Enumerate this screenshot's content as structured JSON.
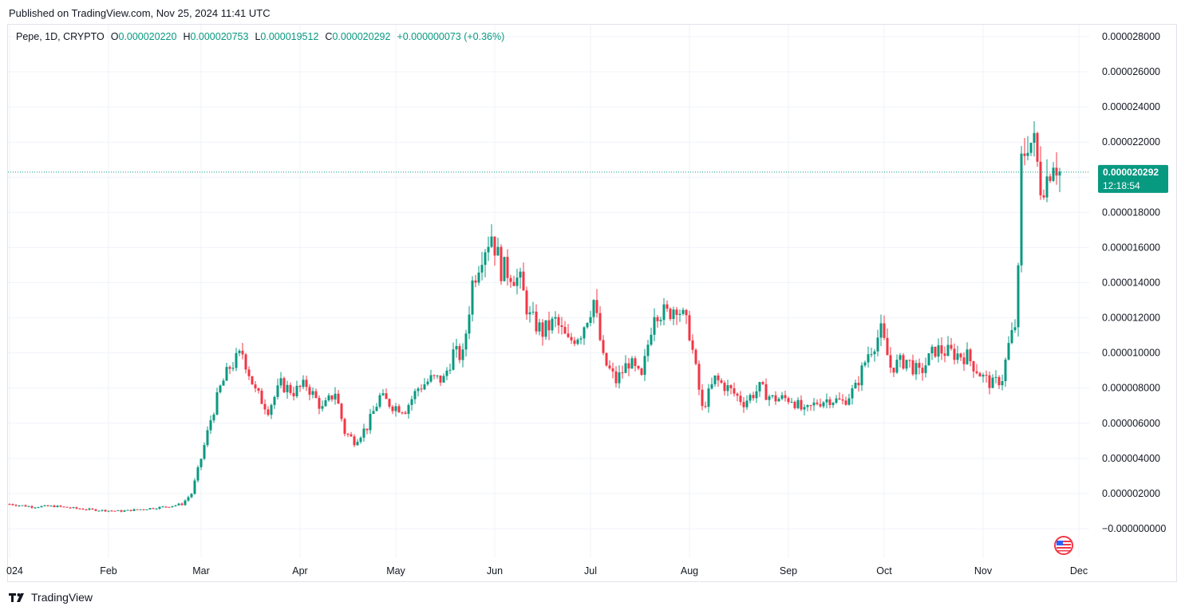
{
  "header": {
    "published": "Published on TradingView.com, Nov 25, 2024 11:41 UTC"
  },
  "legend": {
    "symbol": "Pepe, 1D, CRYPTO",
    "o_label": "O",
    "o": "0.000020220",
    "h_label": "H",
    "h": "0.000020753",
    "l_label": "L",
    "l": "0.000019512",
    "c_label": "C",
    "c": "0.000020292",
    "change": "+0.000000073 (+0.36%)"
  },
  "last_price": {
    "value": "0.000020292",
    "countdown": "12:18:54"
  },
  "footer": {
    "brand": "TradingView",
    "logo_icon": "tradingview-logo-icon",
    "flag_icon": "us-flag-icon"
  },
  "colors": {
    "up": "#089981",
    "down": "#f23645",
    "grid": "#f0f3fa",
    "text": "#131722"
  },
  "chart_data": {
    "type": "candlestick",
    "title": "Pepe, 1D, CRYPTO",
    "y_tick_labels": [
      "0.000028000",
      "0.000026000",
      "0.000024000",
      "0.000022000",
      "0.000020000",
      "0.000018000",
      "0.000016000",
      "0.000014000",
      "0.000012000",
      "0.000010000",
      "0.000008000",
      "0.000006000",
      "0.000004000",
      "0.000002000",
      "−0.000000000"
    ],
    "y_ticks": [
      2.8e-05,
      2.6e-05,
      2.4e-05,
      2.2e-05,
      2e-05,
      1.8e-05,
      1.6e-05,
      1.4e-05,
      1.2e-05,
      1e-05,
      8e-06,
      6e-06,
      4e-06,
      2e-06,
      0
    ],
    "x_tick_labels": [
      "024",
      "Feb",
      "Mar",
      "Apr",
      "May",
      "Jun",
      "Jul",
      "Aug",
      "Sep",
      "Oct",
      "Nov",
      "Dec"
    ],
    "x_tick_dates": [
      "2024-01-01",
      "2024-02-01",
      "2024-03-01",
      "2024-04-01",
      "2024-05-01",
      "2024-06-01",
      "2024-07-01",
      "2024-08-01",
      "2024-09-01",
      "2024-10-01",
      "2024-11-01",
      "2024-12-01"
    ],
    "ylim": [
      -1e-06,
      2.85e-05
    ],
    "grid": true,
    "price_scale_side": "right",
    "close_by_date": [
      [
        "2024-01-01",
        1.4e-06
      ],
      [
        "2024-01-08",
        1.25e-06
      ],
      [
        "2024-01-15",
        1.28e-06
      ],
      [
        "2024-01-22",
        1.15e-06
      ],
      [
        "2024-01-29",
        1.05e-06
      ],
      [
        "2024-02-05",
        1e-06
      ],
      [
        "2024-02-12",
        1.12e-06
      ],
      [
        "2024-02-19",
        1.25e-06
      ],
      [
        "2024-02-24",
        1.4e-06
      ],
      [
        "2024-02-27",
        2e-06
      ],
      [
        "2024-03-01",
        4e-06
      ],
      [
        "2024-03-04",
        6.2e-06
      ],
      [
        "2024-03-07",
        8e-06
      ],
      [
        "2024-03-10",
        9.2e-06
      ],
      [
        "2024-03-14",
        1e-05
      ],
      [
        "2024-03-18",
        7.8e-06
      ],
      [
        "2024-03-22",
        6.8e-06
      ],
      [
        "2024-03-26",
        8.2e-06
      ],
      [
        "2024-03-30",
        7.8e-06
      ],
      [
        "2024-04-03",
        8.2e-06
      ],
      [
        "2024-04-08",
        6.8e-06
      ],
      [
        "2024-04-12",
        7.8e-06
      ],
      [
        "2024-04-15",
        5.5e-06
      ],
      [
        "2024-04-18",
        5e-06
      ],
      [
        "2024-04-22",
        5.8e-06
      ],
      [
        "2024-04-26",
        7.5e-06
      ],
      [
        "2024-04-30",
        7e-06
      ],
      [
        "2024-05-04",
        6.8e-06
      ],
      [
        "2024-05-08",
        8e-06
      ],
      [
        "2024-05-12",
        8.5e-06
      ],
      [
        "2024-05-16",
        8.5e-06
      ],
      [
        "2024-05-19",
        1e-05
      ],
      [
        "2024-05-22",
        9.8e-06
      ],
      [
        "2024-05-25",
        1.4e-05
      ],
      [
        "2024-05-28",
        1.58e-05
      ],
      [
        "2024-05-31",
        1.68e-05
      ],
      [
        "2024-06-03",
        1.48e-05
      ],
      [
        "2024-06-06",
        1.46e-05
      ],
      [
        "2024-06-09",
        1.4e-05
      ],
      [
        "2024-06-12",
        1.2e-05
      ],
      [
        "2024-06-16",
        1.12e-05
      ],
      [
        "2024-06-20",
        1.18e-05
      ],
      [
        "2024-06-24",
        1.06e-05
      ],
      [
        "2024-06-28",
        1.12e-05
      ],
      [
        "2024-07-02",
        1.3e-05
      ],
      [
        "2024-07-05",
        9.6e-06
      ],
      [
        "2024-07-09",
        8.4e-06
      ],
      [
        "2024-07-13",
        9.5e-06
      ],
      [
        "2024-07-17",
        8.5e-06
      ],
      [
        "2024-07-21",
        1.25e-05
      ],
      [
        "2024-07-25",
        1.22e-05
      ],
      [
        "2024-07-28",
        1.28e-05
      ],
      [
        "2024-08-01",
        1.12e-05
      ],
      [
        "2024-08-05",
        6.8e-06
      ],
      [
        "2024-08-09",
        8.5e-06
      ],
      [
        "2024-08-13",
        8e-06
      ],
      [
        "2024-08-18",
        7.2e-06
      ],
      [
        "2024-08-23",
        8e-06
      ],
      [
        "2024-08-27",
        7.4e-06
      ],
      [
        "2024-09-02",
        7.4e-06
      ],
      [
        "2024-09-06",
        6.6e-06
      ],
      [
        "2024-09-10",
        7.2e-06
      ],
      [
        "2024-09-14",
        7.4e-06
      ],
      [
        "2024-09-18",
        7.2e-06
      ],
      [
        "2024-09-22",
        8e-06
      ],
      [
        "2024-09-26",
        1e-05
      ],
      [
        "2024-09-30",
        1.12e-05
      ],
      [
        "2024-10-03",
        9.2e-06
      ],
      [
        "2024-10-08",
        9.6e-06
      ],
      [
        "2024-10-12",
        8.8e-06
      ],
      [
        "2024-10-17",
        1.02e-05
      ],
      [
        "2024-10-22",
        1e-05
      ],
      [
        "2024-10-27",
        9.8e-06
      ],
      [
        "2024-11-01",
        8.6e-06
      ],
      [
        "2024-11-04",
        8.2e-06
      ],
      [
        "2024-11-07",
        8.6e-06
      ],
      [
        "2024-11-09",
        1.04e-05
      ],
      [
        "2024-11-11",
        1.16e-05
      ],
      [
        "2024-11-12",
        1.44e-05
      ],
      [
        "2024-11-13",
        2.08e-05
      ],
      [
        "2024-11-15",
        2.22e-05
      ],
      [
        "2024-11-17",
        2.18e-05
      ],
      [
        "2024-11-19",
        1.96e-05
      ],
      [
        "2024-11-21",
        2e-05
      ],
      [
        "2024-11-23",
        2.12e-05
      ],
      [
        "2024-11-25",
        2.03e-05
      ]
    ]
  }
}
